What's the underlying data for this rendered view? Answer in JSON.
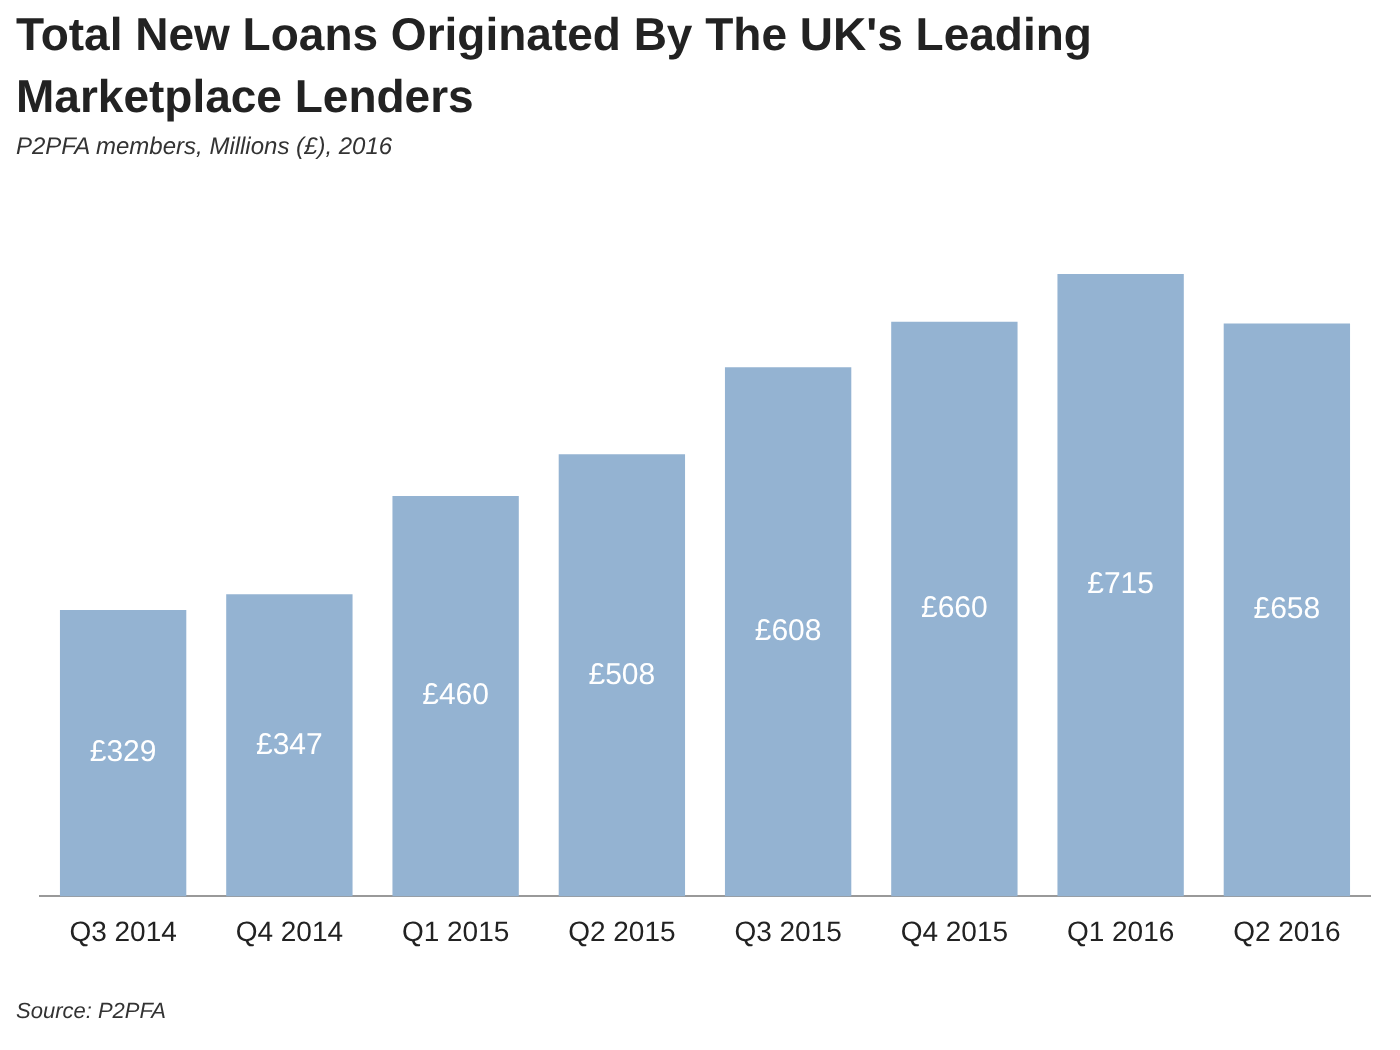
{
  "chart_data": {
    "type": "bar",
    "title": "Total New Loans Originated By The UK's Leading Marketplace Lenders",
    "subtitle": "P2PFA members, Millions (£), 2016",
    "categories": [
      "Q3 2014",
      "Q4 2014",
      "Q1 2015",
      "Q2 2015",
      "Q3 2015",
      "Q4 2015",
      "Q1 2016",
      "Q2 2016"
    ],
    "values": [
      329,
      347,
      460,
      508,
      608,
      660,
      715,
      658
    ],
    "value_labels": [
      "£329",
      "£347",
      "£460",
      "£508",
      "£608",
      "£660",
      "£715",
      "£658"
    ],
    "color": "#94b3d2",
    "grid": false,
    "legend": false,
    "annotations": [
      "Source: P2PFA"
    ]
  }
}
